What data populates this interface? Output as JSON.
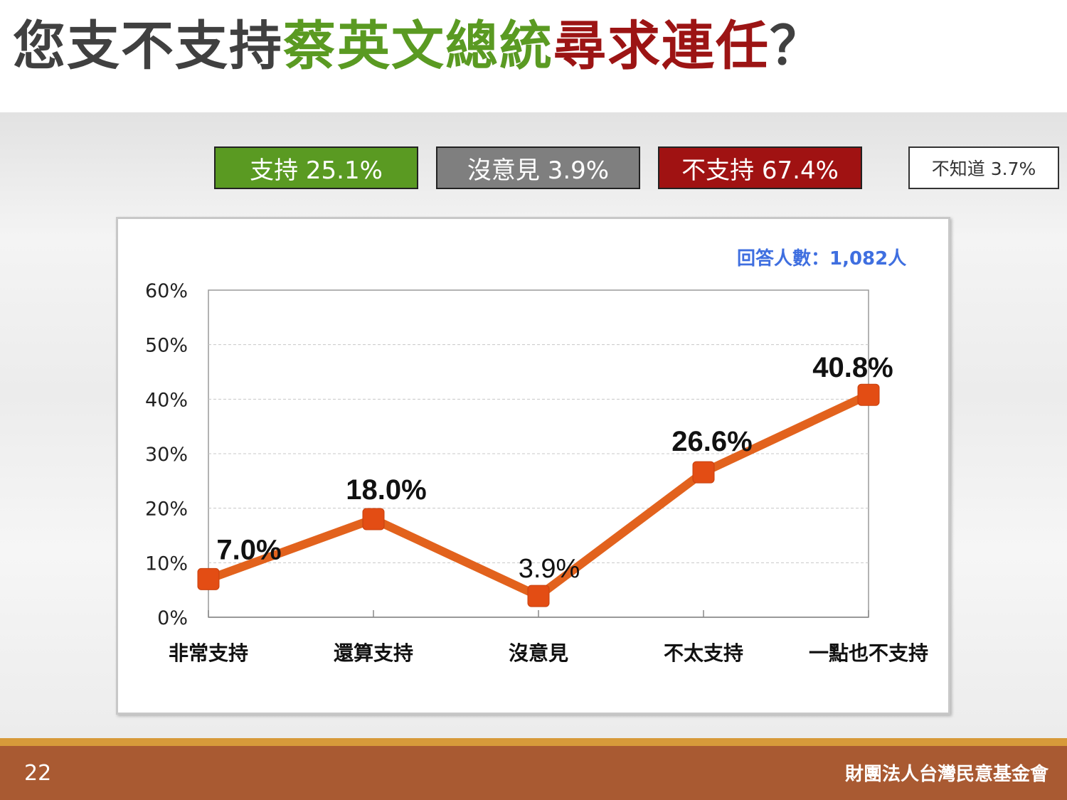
{
  "title": {
    "part1": "您支不支持",
    "part2": "蔡英文總統",
    "part3": "尋求連任",
    "part4": "？"
  },
  "summary": {
    "support": "支持 25.1%",
    "no_opinion": "沒意見 3.9%",
    "oppose": "不支持 67.4%",
    "dont_know": "不知道 3.7%"
  },
  "respondents": "回答人數：1,082人",
  "footer": {
    "page_number": "22",
    "organization": "財團法人台灣民意基金會"
  },
  "colors": {
    "line": "#e2621d",
    "marker": "#e34d14",
    "green": "#5a9a22",
    "red": "#a01212",
    "gray": "#7f7f7f"
  },
  "chart_data": {
    "type": "line",
    "categories": [
      "非常支持",
      "還算支持",
      "沒意見",
      "不太支持",
      "一點也不支持"
    ],
    "values": [
      7.0,
      18.0,
      3.9,
      26.6,
      40.8
    ],
    "data_labels": [
      "7.0%",
      "18.0%",
      "3.9%",
      "26.6%",
      "40.8%"
    ],
    "y_ticks": [
      "0%",
      "10%",
      "20%",
      "30%",
      "40%",
      "50%",
      "60%"
    ],
    "ylim": [
      0,
      60
    ],
    "grid": true,
    "legend": "none",
    "title": "",
    "xlabel": "",
    "ylabel": ""
  }
}
